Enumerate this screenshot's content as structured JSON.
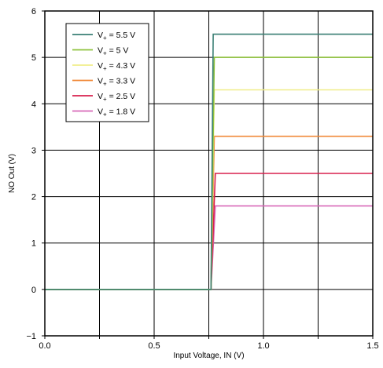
{
  "chart_data": {
    "type": "line",
    "xlabel": "Input Voltage, IN (V)",
    "ylabel": "NO Out (V)",
    "xlim": [
      0.0,
      1.5
    ],
    "ylim": [
      -1,
      6
    ],
    "x_ticks": [
      "0.0",
      "0.5",
      "1.0",
      "1.5"
    ],
    "x_tick_values": [
      0,
      0.5,
      1.0,
      1.5
    ],
    "y_ticks": [
      "−1",
      "0",
      "1",
      "2",
      "3",
      "4",
      "5",
      "6"
    ],
    "y_tick_values": [
      -1,
      0,
      1,
      2,
      3,
      4,
      5,
      6
    ],
    "grid": "on",
    "legend_position": "top-left",
    "series": [
      {
        "name": "V+ = 5.5 V",
        "label_main": "V",
        "label_sub": "+",
        "label_rest": " = 5.5 V",
        "color": "#3a7f74",
        "x": [
          0.0,
          0.76,
          0.77,
          1.5
        ],
        "y": [
          0,
          0,
          5.5,
          5.5
        ]
      },
      {
        "name": "V+ = 5 V",
        "label_main": "V",
        "label_sub": "+",
        "label_rest": " = 5 V",
        "color": "#8ec23c",
        "x": [
          0.0,
          0.76,
          0.775,
          1.5
        ],
        "y": [
          0,
          0,
          5.0,
          5.0
        ]
      },
      {
        "name": "V+ = 4.3 V",
        "label_main": "V",
        "label_sub": "+",
        "label_rest": " = 4.3 V",
        "color": "#f0ee8a",
        "x": [
          0.0,
          0.76,
          0.775,
          1.5
        ],
        "y": [
          0,
          0,
          4.3,
          4.3
        ]
      },
      {
        "name": "V+ = 3.3 V",
        "label_main": "V",
        "label_sub": "+",
        "label_rest": " = 3.3 V",
        "color": "#f08a3a",
        "x": [
          0.0,
          0.76,
          0.775,
          1.5
        ],
        "y": [
          0,
          0,
          3.3,
          3.3
        ]
      },
      {
        "name": "V+ = 2.5 V",
        "label_main": "V",
        "label_sub": "+",
        "label_rest": " = 2.5 V",
        "color": "#d8204e",
        "x": [
          0.0,
          0.76,
          0.78,
          1.5
        ],
        "y": [
          0,
          0,
          2.5,
          2.5
        ]
      },
      {
        "name": "V+ = 1.8 V",
        "label_main": "V",
        "label_sub": "+",
        "label_rest": " = 1.8 V",
        "color": "#d868b8",
        "x": [
          0.0,
          0.76,
          0.78,
          1.5
        ],
        "y": [
          0,
          0,
          1.8,
          1.8
        ]
      }
    ]
  }
}
